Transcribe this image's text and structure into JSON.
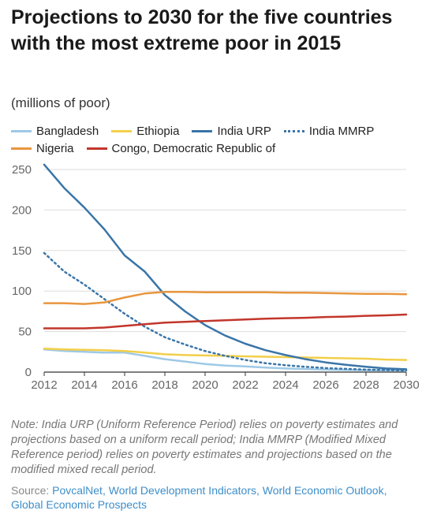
{
  "title": "Projections to 2030 for the five countries with the most extreme poor in 2015",
  "subtitle": "(millions of poor)",
  "note": "Note: India URP (Uniform Reference Period) relies on poverty estimates and projections based on a uniform recall period; India MMRP (Modified Mixed Reference period) relies on poverty estimates and projections based on the modified mixed recall period.",
  "source": {
    "label": "Source: ",
    "links": "PovcalNet, World Development Indicators, World Economic Outlook, Global Economic Prospects"
  },
  "chart_data": {
    "type": "line",
    "title": "Projections to 2030 for the five countries with the most extreme poor in 2015",
    "subtitle": "(millions of poor)",
    "xlabel": "",
    "ylabel": "",
    "x": [
      2012,
      2013,
      2014,
      2015,
      2016,
      2017,
      2018,
      2019,
      2020,
      2021,
      2022,
      2023,
      2024,
      2025,
      2026,
      2027,
      2028,
      2029,
      2030
    ],
    "xticks": [
      2012,
      2014,
      2016,
      2018,
      2020,
      2022,
      2024,
      2026,
      2028,
      2030
    ],
    "xlim": [
      2012,
      2030
    ],
    "ylim": [
      0,
      250
    ],
    "yticks": [
      0,
      50,
      100,
      150,
      200,
      250
    ],
    "grid": true,
    "legend_position": "top",
    "series": [
      {
        "name": "Bangladesh",
        "color": "#9ec9e6",
        "style": "solid",
        "values": [
          28,
          26,
          25,
          24,
          24,
          20,
          16,
          13,
          10,
          8,
          7,
          5.5,
          4.5,
          3.8,
          3.2,
          2.7,
          2.3,
          2,
          1.8
        ]
      },
      {
        "name": "Ethiopia",
        "color": "#f2cf4a",
        "style": "solid",
        "values": [
          29,
          28,
          27.5,
          27,
          26,
          24,
          22,
          21,
          20.5,
          20,
          19.5,
          19,
          18.5,
          18,
          17.5,
          17,
          16.5,
          15.5,
          15
        ]
      },
      {
        "name": "India URP",
        "color": "#3a75a8",
        "style": "solid",
        "values": [
          256,
          227,
          203,
          176,
          144,
          124,
          95,
          75,
          58,
          45,
          35,
          27,
          21,
          16,
          12,
          9,
          6.5,
          4.5,
          3.5
        ]
      },
      {
        "name": "India MMRP",
        "color": "#3a75a8",
        "style": "dotted",
        "values": [
          147,
          124,
          108,
          90,
          72,
          56,
          43,
          34,
          26,
          20,
          15,
          11,
          8.5,
          6.5,
          5,
          4,
          3,
          2.5,
          2
        ]
      },
      {
        "name": "Nigeria",
        "color": "#e8963e",
        "style": "solid",
        "values": [
          85,
          85,
          84,
          86,
          92,
          97,
          99,
          99,
          98.5,
          98.5,
          98.5,
          98.5,
          98,
          98,
          97.5,
          97,
          96.5,
          96.5,
          96
        ]
      },
      {
        "name": "Congo, Democratic Republic of",
        "color": "#c2362b",
        "style": "solid",
        "values": [
          54,
          54,
          54,
          55,
          57,
          59,
          61,
          62,
          63,
          64,
          65,
          66,
          66.5,
          67,
          68,
          68.5,
          69.5,
          70,
          71
        ]
      }
    ]
  }
}
